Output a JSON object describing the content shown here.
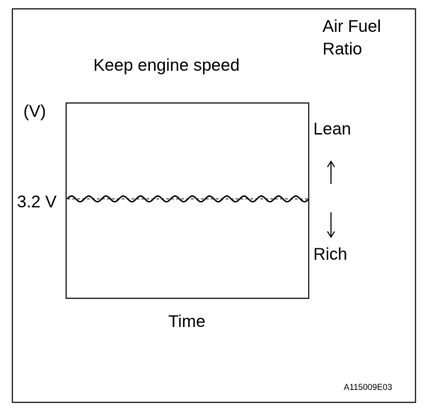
{
  "header": {
    "title_lines": [
      "Air Fuel",
      "Ratio"
    ],
    "condition": "Keep engine speed"
  },
  "axes": {
    "y_unit": "(V)",
    "level_label": "3.2 V",
    "x_label": "Time"
  },
  "indicators": {
    "upper": "Lean",
    "lower": "Rich"
  },
  "figure_id": "A115009E03"
}
